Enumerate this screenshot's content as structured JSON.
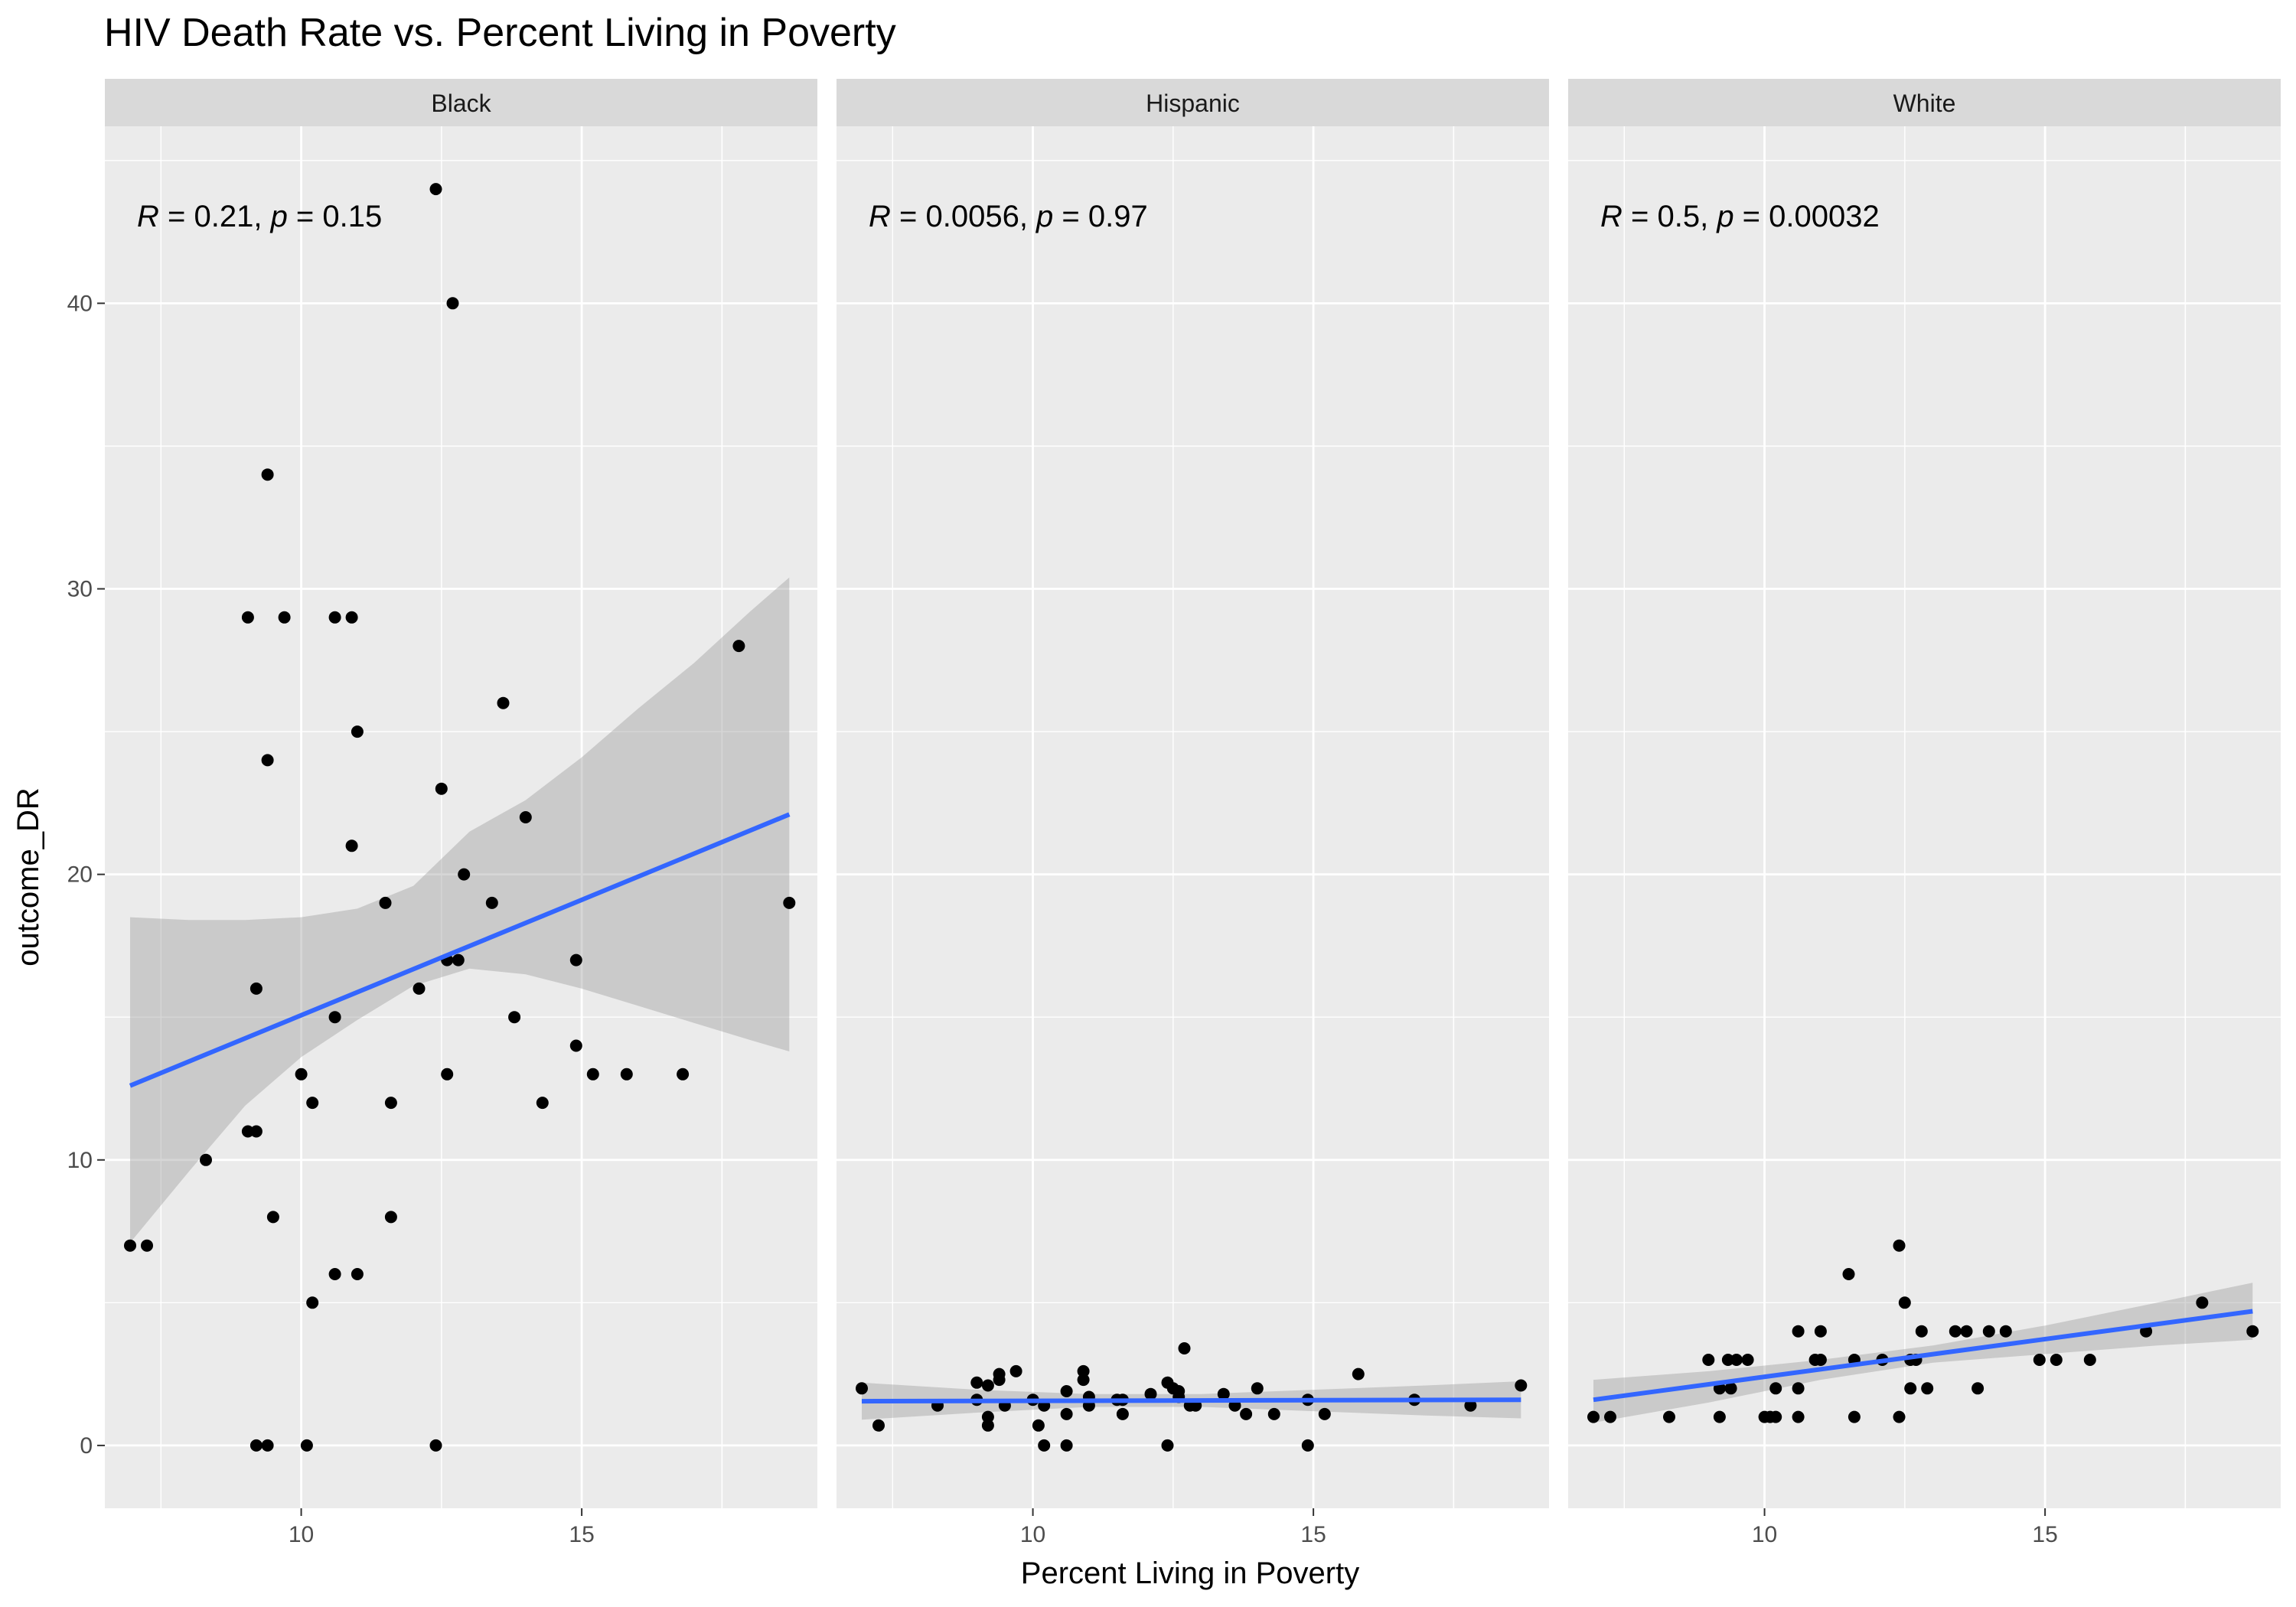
{
  "chart_data": {
    "type": "scatter",
    "title": "HIV Death Rate vs. Percent Living in Poverty",
    "xlabel": "Percent Living in Poverty",
    "ylabel": "outcome_DR",
    "xlim": [
      6.5,
      19.2
    ],
    "ylim": [
      -2.2,
      46.2
    ],
    "x_ticks": [
      10,
      15
    ],
    "y_ticks": [
      0,
      10,
      20,
      30,
      40
    ],
    "grid": true,
    "legend": "none",
    "colors": {
      "panel_bg": "#EBEBEB",
      "strip_bg": "#D9D9D9",
      "grid_major": "#FFFFFF",
      "points": "#000000",
      "fit_line": "#3366FF",
      "ci_band": "#999999"
    },
    "facets": [
      {
        "name": "Black",
        "annotation": {
          "r_label": "R",
          "r_text": " = 0.21, ",
          "p_label": "p",
          "p_text": " = 0.15"
        },
        "fit": {
          "x0": 6.95,
          "y0": 12.6,
          "x1": 18.7,
          "y1": 22.1
        },
        "ci_band": {
          "x": [
            6.95,
            8,
            9,
            10,
            11,
            12,
            13,
            14,
            15,
            16,
            17,
            18,
            18.7
          ],
          "lower": [
            7.1,
            9.6,
            11.9,
            13.6,
            14.9,
            16.1,
            16.7,
            16.5,
            16.0,
            15.4,
            14.8,
            14.2,
            13.8
          ],
          "upper": [
            18.5,
            18.4,
            18.4,
            18.5,
            18.8,
            19.6,
            21.5,
            22.6,
            24.1,
            25.8,
            27.4,
            29.2,
            30.4
          ]
        },
        "points": [
          [
            6.95,
            7
          ],
          [
            7.25,
            7
          ],
          [
            8.3,
            10
          ],
          [
            9.05,
            11
          ],
          [
            9.2,
            11
          ],
          [
            9.05,
            29
          ],
          [
            9.2,
            16
          ],
          [
            9.4,
            34
          ],
          [
            9.4,
            24
          ],
          [
            9.5,
            8
          ],
          [
            9.2,
            0
          ],
          [
            9.4,
            0
          ],
          [
            9.7,
            29
          ],
          [
            10.0,
            13
          ],
          [
            10.2,
            12
          ],
          [
            10.1,
            0
          ],
          [
            10.2,
            5
          ],
          [
            10.6,
            29
          ],
          [
            10.6,
            15
          ],
          [
            10.6,
            6
          ],
          [
            10.9,
            29
          ],
          [
            10.9,
            21
          ],
          [
            11.0,
            25
          ],
          [
            11.0,
            6
          ],
          [
            11.5,
            19
          ],
          [
            11.6,
            12
          ],
          [
            11.6,
            8
          ],
          [
            12.1,
            16
          ],
          [
            12.4,
            44
          ],
          [
            12.5,
            23
          ],
          [
            12.6,
            17
          ],
          [
            12.6,
            13
          ],
          [
            12.4,
            0
          ],
          [
            12.7,
            40
          ],
          [
            12.8,
            17
          ],
          [
            12.9,
            20
          ],
          [
            13.4,
            19
          ],
          [
            13.6,
            26
          ],
          [
            13.8,
            15
          ],
          [
            14.0,
            22
          ],
          [
            14.3,
            12
          ],
          [
            14.9,
            17
          ],
          [
            14.9,
            14
          ],
          [
            15.2,
            13
          ],
          [
            15.8,
            13
          ],
          [
            16.8,
            13
          ],
          [
            17.8,
            28
          ],
          [
            18.7,
            19
          ]
        ]
      },
      {
        "name": "Hispanic",
        "annotation": {
          "r_label": "R",
          "r_text": " = 0.0056, ",
          "p_label": "p",
          "p_text": " = 0.97"
        },
        "fit": {
          "x0": 6.95,
          "y0": 1.55,
          "x1": 18.7,
          "y1": 1.6
        },
        "ci_band": {
          "x": [
            6.95,
            9,
            11,
            13,
            15,
            17,
            18.7
          ],
          "lower": [
            0.9,
            1.15,
            1.35,
            1.35,
            1.2,
            1.05,
            0.95
          ],
          "upper": [
            2.2,
            1.95,
            1.8,
            1.8,
            1.95,
            2.1,
            2.25
          ]
        },
        "points": [
          [
            6.95,
            2.0
          ],
          [
            7.25,
            0.7
          ],
          [
            8.3,
            1.4
          ],
          [
            9.0,
            1.6
          ],
          [
            9.0,
            2.2
          ],
          [
            9.2,
            2.1
          ],
          [
            9.2,
            1.0
          ],
          [
            9.2,
            0.7
          ],
          [
            9.4,
            2.3
          ],
          [
            9.4,
            2.5
          ],
          [
            9.5,
            1.4
          ],
          [
            9.7,
            2.6
          ],
          [
            10.0,
            1.6
          ],
          [
            10.1,
            0.7
          ],
          [
            10.2,
            1.4
          ],
          [
            10.2,
            0.0
          ],
          [
            10.6,
            1.9
          ],
          [
            10.6,
            1.1
          ],
          [
            10.6,
            0.0
          ],
          [
            10.9,
            2.6
          ],
          [
            10.9,
            2.3
          ],
          [
            11.0,
            1.7
          ],
          [
            11.0,
            1.4
          ],
          [
            11.5,
            1.6
          ],
          [
            11.6,
            1.6
          ],
          [
            11.6,
            1.1
          ],
          [
            12.1,
            1.8
          ],
          [
            12.4,
            2.2
          ],
          [
            12.5,
            2.0
          ],
          [
            12.6,
            1.9
          ],
          [
            12.6,
            1.7
          ],
          [
            12.4,
            0.0
          ],
          [
            12.7,
            3.4
          ],
          [
            12.8,
            1.4
          ],
          [
            12.9,
            1.4
          ],
          [
            13.4,
            1.8
          ],
          [
            13.6,
            1.4
          ],
          [
            13.8,
            1.1
          ],
          [
            14.0,
            2.0
          ],
          [
            14.3,
            1.1
          ],
          [
            14.9,
            1.6
          ],
          [
            14.9,
            0.0
          ],
          [
            15.2,
            1.1
          ],
          [
            15.8,
            2.5
          ],
          [
            16.8,
            1.6
          ],
          [
            17.8,
            1.4
          ],
          [
            18.7,
            2.1
          ]
        ]
      },
      {
        "name": "White",
        "annotation": {
          "r_label": "R",
          "r_text": " = 0.5, ",
          "p_label": "p",
          "p_text": " = 0.00032"
        },
        "fit": {
          "x0": 6.95,
          "y0": 1.6,
          "x1": 18.7,
          "y1": 4.7
        },
        "ci_band": {
          "x": [
            6.95,
            9,
            11,
            13,
            15,
            17,
            18.7
          ],
          "lower": [
            0.8,
            1.5,
            2.3,
            2.9,
            3.2,
            3.5,
            3.7
          ],
          "upper": [
            2.3,
            2.6,
            3.0,
            3.5,
            4.2,
            5.0,
            5.7
          ]
        },
        "points": [
          [
            6.95,
            1
          ],
          [
            7.25,
            1
          ],
          [
            8.3,
            1
          ],
          [
            9.0,
            3
          ],
          [
            9.2,
            2
          ],
          [
            9.2,
            1
          ],
          [
            9.35,
            3
          ],
          [
            9.4,
            2
          ],
          [
            9.5,
            3
          ],
          [
            9.7,
            3
          ],
          [
            10.0,
            1
          ],
          [
            10.1,
            1
          ],
          [
            10.2,
            2
          ],
          [
            10.2,
            1
          ],
          [
            10.6,
            4
          ],
          [
            10.6,
            2
          ],
          [
            10.6,
            1
          ],
          [
            10.9,
            3
          ],
          [
            11.0,
            4
          ],
          [
            11.0,
            3
          ],
          [
            11.5,
            6
          ],
          [
            11.6,
            3
          ],
          [
            11.6,
            1
          ],
          [
            12.1,
            3
          ],
          [
            12.4,
            7
          ],
          [
            12.5,
            5
          ],
          [
            12.6,
            3
          ],
          [
            12.6,
            2
          ],
          [
            12.4,
            1
          ],
          [
            12.7,
            3
          ],
          [
            12.8,
            4
          ],
          [
            12.9,
            2
          ],
          [
            13.4,
            4
          ],
          [
            13.6,
            4
          ],
          [
            13.8,
            2
          ],
          [
            14.0,
            4
          ],
          [
            14.3,
            4
          ],
          [
            14.9,
            3
          ],
          [
            15.2,
            3
          ],
          [
            15.8,
            3
          ],
          [
            16.8,
            4
          ],
          [
            17.8,
            5
          ],
          [
            18.7,
            4
          ]
        ]
      }
    ]
  }
}
